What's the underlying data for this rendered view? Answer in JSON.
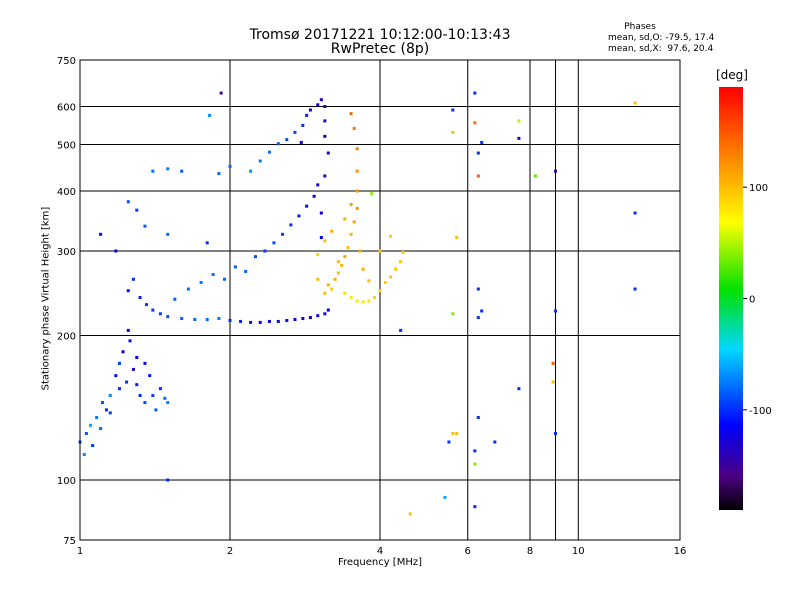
{
  "title_line1": "Tromsø 20171221 10:12:00-10:13:43",
  "title_line2": "RwPretec (8p)",
  "phases": {
    "title": "Phases",
    "line_o": "mean, sd,O: -79.5, 17.4",
    "line_x": "mean, sd,X:  97.6, 20.4"
  },
  "colorbar": {
    "unit": "[deg]",
    "ticks": [
      "100",
      "0",
      "-100"
    ],
    "range": [
      -190,
      190
    ]
  },
  "chart_data": {
    "type": "scatter",
    "xlabel": "Frequency [MHz]",
    "ylabel": "Stationary phase Virtual Height [km]",
    "x_scale": "log",
    "y_scale": "log",
    "xlim": [
      1,
      16
    ],
    "ylim": [
      75,
      750
    ],
    "x_ticks": [
      "1",
      "2",
      "4",
      "6",
      "8",
      "10",
      "16"
    ],
    "y_ticks": [
      "75",
      "100",
      "200",
      "300",
      "400",
      "500",
      "600",
      "750"
    ],
    "grid": true,
    "colorscale": "phase (deg), rainbow from black (-190) through blue, cyan, green, yellow to red (190)",
    "series": [
      {
        "name": "O",
        "points": [
          [
            1.0,
            120,
            -90
          ],
          [
            1.02,
            113,
            -70
          ],
          [
            1.03,
            125,
            -85
          ],
          [
            1.05,
            130,
            -60
          ],
          [
            1.06,
            118,
            -95
          ],
          [
            1.08,
            135,
            -75
          ],
          [
            1.1,
            128,
            -80
          ],
          [
            1.11,
            145,
            -90
          ],
          [
            1.13,
            140,
            -100
          ],
          [
            1.15,
            150,
            -70
          ],
          [
            1.18,
            165,
            -110
          ],
          [
            1.2,
            175,
            -95
          ],
          [
            1.22,
            185,
            -120
          ],
          [
            1.24,
            160,
            -100
          ],
          [
            1.26,
            195,
            -110
          ],
          [
            1.28,
            170,
            -130
          ],
          [
            1.3,
            158,
            -105
          ],
          [
            1.32,
            150,
            -100
          ],
          [
            1.35,
            145,
            -90
          ],
          [
            1.38,
            165,
            -110
          ],
          [
            1.4,
            150,
            -95
          ],
          [
            1.42,
            140,
            -85
          ],
          [
            1.45,
            155,
            -100
          ],
          [
            1.48,
            148,
            -80
          ],
          [
            1.5,
            145,
            -75
          ],
          [
            1.3,
            180,
            -115
          ],
          [
            1.25,
            205,
            -120
          ],
          [
            1.2,
            155,
            -100
          ],
          [
            1.15,
            138,
            -95
          ],
          [
            1.35,
            175,
            -110
          ],
          [
            1.25,
            248,
            -110
          ],
          [
            1.28,
            262,
            -100
          ],
          [
            1.32,
            240,
            -105
          ],
          [
            1.36,
            232,
            -95
          ],
          [
            1.4,
            226,
            -100
          ],
          [
            1.45,
            222,
            -95
          ],
          [
            1.5,
            219,
            -90
          ],
          [
            1.6,
            217,
            -85
          ],
          [
            1.7,
            216,
            -80
          ],
          [
            1.8,
            216,
            -78
          ],
          [
            1.9,
            217,
            -75
          ],
          [
            2.0,
            215,
            -100
          ],
          [
            2.1,
            214,
            -105
          ],
          [
            2.2,
            213,
            -110
          ],
          [
            2.3,
            213,
            -115
          ],
          [
            2.4,
            214,
            -120
          ],
          [
            2.5,
            214,
            -115
          ],
          [
            2.6,
            215,
            -110
          ],
          [
            2.7,
            216,
            -120
          ],
          [
            2.8,
            217,
            -125
          ],
          [
            2.9,
            218,
            -120
          ],
          [
            3.0,
            220,
            -115
          ],
          [
            3.1,
            222,
            -110
          ],
          [
            3.15,
            226,
            -120
          ],
          [
            1.55,
            238,
            -85
          ],
          [
            1.65,
            250,
            -80
          ],
          [
            1.75,
            258,
            -75
          ],
          [
            1.85,
            268,
            -78
          ],
          [
            1.95,
            262,
            -82
          ],
          [
            2.05,
            278,
            -85
          ],
          [
            2.15,
            272,
            -80
          ],
          [
            2.25,
            292,
            -90
          ],
          [
            2.35,
            300,
            -95
          ],
          [
            2.45,
            312,
            -90
          ],
          [
            2.55,
            325,
            -95
          ],
          [
            2.65,
            340,
            -100
          ],
          [
            2.75,
            355,
            -105
          ],
          [
            2.85,
            372,
            -110
          ],
          [
            2.95,
            390,
            -120
          ],
          [
            3.0,
            412,
            -125
          ],
          [
            2.2,
            440,
            -70
          ],
          [
            2.3,
            462,
            -75
          ],
          [
            2.4,
            482,
            -80
          ],
          [
            2.5,
            502,
            -85
          ],
          [
            2.6,
            512,
            -90
          ],
          [
            2.7,
            530,
            -95
          ],
          [
            2.8,
            548,
            -100
          ],
          [
            2.85,
            575,
            -105
          ],
          [
            2.9,
            590,
            -120
          ],
          [
            3.0,
            605,
            -130
          ],
          [
            3.05,
            620,
            -140
          ],
          [
            3.1,
            600,
            -135
          ],
          [
            3.1,
            560,
            -130
          ],
          [
            3.1,
            520,
            -128
          ],
          [
            3.15,
            480,
            -132
          ],
          [
            3.1,
            430,
            -130
          ],
          [
            3.05,
            360,
            -120
          ],
          [
            3.05,
            320,
            -115
          ],
          [
            1.4,
            440,
            -80
          ],
          [
            1.5,
            445,
            -75
          ],
          [
            1.6,
            440,
            -85
          ],
          [
            1.9,
            435,
            -80
          ],
          [
            2.0,
            450,
            -78
          ],
          [
            1.3,
            365,
            -95
          ],
          [
            1.25,
            380,
            -90
          ],
          [
            1.35,
            338,
            -85
          ],
          [
            1.8,
            312,
            -100
          ],
          [
            1.5,
            325,
            -80
          ],
          [
            1.1,
            325,
            -110
          ],
          [
            1.18,
            300,
            -120
          ]
        ]
      },
      {
        "name": "X",
        "points": [
          [
            3.1,
            245,
            100
          ],
          [
            3.15,
            255,
            105
          ],
          [
            3.2,
            250,
            95
          ],
          [
            3.25,
            262,
            110
          ],
          [
            3.3,
            270,
            100
          ],
          [
            3.35,
            280,
            105
          ],
          [
            3.4,
            292,
            110
          ],
          [
            3.45,
            305,
            100
          ],
          [
            3.5,
            325,
            105
          ],
          [
            3.55,
            345,
            115
          ],
          [
            3.6,
            368,
            120
          ],
          [
            3.6,
            400,
            120
          ],
          [
            3.6,
            440,
            125
          ],
          [
            3.6,
            490,
            130
          ],
          [
            3.55,
            540,
            135
          ],
          [
            3.5,
            580,
            140
          ],
          [
            3.4,
            245,
            85
          ],
          [
            3.5,
            240,
            80
          ],
          [
            3.6,
            236,
            78
          ],
          [
            3.7,
            235,
            80
          ],
          [
            3.8,
            236,
            82
          ],
          [
            3.9,
            240,
            85
          ],
          [
            4.0,
            248,
            90
          ],
          [
            4.1,
            258,
            92
          ],
          [
            4.2,
            265,
            95
          ],
          [
            4.3,
            275,
            96
          ],
          [
            4.4,
            285,
            98
          ],
          [
            4.45,
            298,
            95
          ],
          [
            3.0,
            262,
            100
          ],
          [
            3.0,
            295,
            90
          ],
          [
            3.1,
            315,
            100
          ],
          [
            3.2,
            330,
            105
          ],
          [
            3.3,
            285,
            105
          ],
          [
            3.4,
            350,
            108
          ],
          [
            3.5,
            375,
            115
          ],
          [
            3.65,
            300,
            110
          ],
          [
            3.7,
            275,
            108
          ],
          [
            3.8,
            260,
            100
          ],
          [
            4.0,
            300,
            95
          ],
          [
            4.2,
            322,
            92
          ]
        ]
      }
    ],
    "scattered_points": [
      [
        5.6,
        590,
        -100
      ],
      [
        5.6,
        530,
        100
      ],
      [
        6.2,
        640,
        -100
      ],
      [
        6.2,
        555,
        140
      ],
      [
        6.3,
        480,
        -100
      ],
      [
        6.3,
        430,
        150
      ],
      [
        6.4,
        505,
        -100
      ],
      [
        7.6,
        560,
        50
      ],
      [
        7.6,
        515,
        -120
      ],
      [
        8.2,
        430,
        30
      ],
      [
        9.0,
        440,
        -150
      ],
      [
        13.0,
        610,
        100
      ],
      [
        13.0,
        360,
        -100
      ],
      [
        13.0,
        250,
        -100
      ],
      [
        6.3,
        250,
        -100
      ],
      [
        6.3,
        218,
        -100
      ],
      [
        9.0,
        225,
        -100
      ],
      [
        5.7,
        320,
        100
      ],
      [
        5.6,
        222,
        40
      ],
      [
        6.4,
        225,
        -100
      ],
      [
        5.5,
        120,
        -100
      ],
      [
        5.6,
        125,
        100
      ],
      [
        5.7,
        125,
        100
      ],
      [
        6.3,
        135,
        -100
      ],
      [
        7.6,
        155,
        -100
      ],
      [
        9.0,
        125,
        -100
      ],
      [
        8.9,
        160,
        100
      ],
      [
        8.9,
        175,
        150
      ],
      [
        6.2,
        108,
        40
      ],
      [
        6.2,
        115,
        -100
      ],
      [
        6.8,
        120,
        -100
      ],
      [
        4.6,
        85,
        100
      ],
      [
        5.4,
        92,
        -60
      ],
      [
        6.2,
        88,
        -100
      ],
      [
        4.4,
        205,
        -100
      ],
      [
        1.5,
        100,
        -100
      ],
      [
        1.82,
        575,
        -70
      ],
      [
        1.92,
        640,
        -150
      ],
      [
        2.78,
        505,
        -120
      ],
      [
        3.85,
        395,
        40
      ]
    ]
  }
}
